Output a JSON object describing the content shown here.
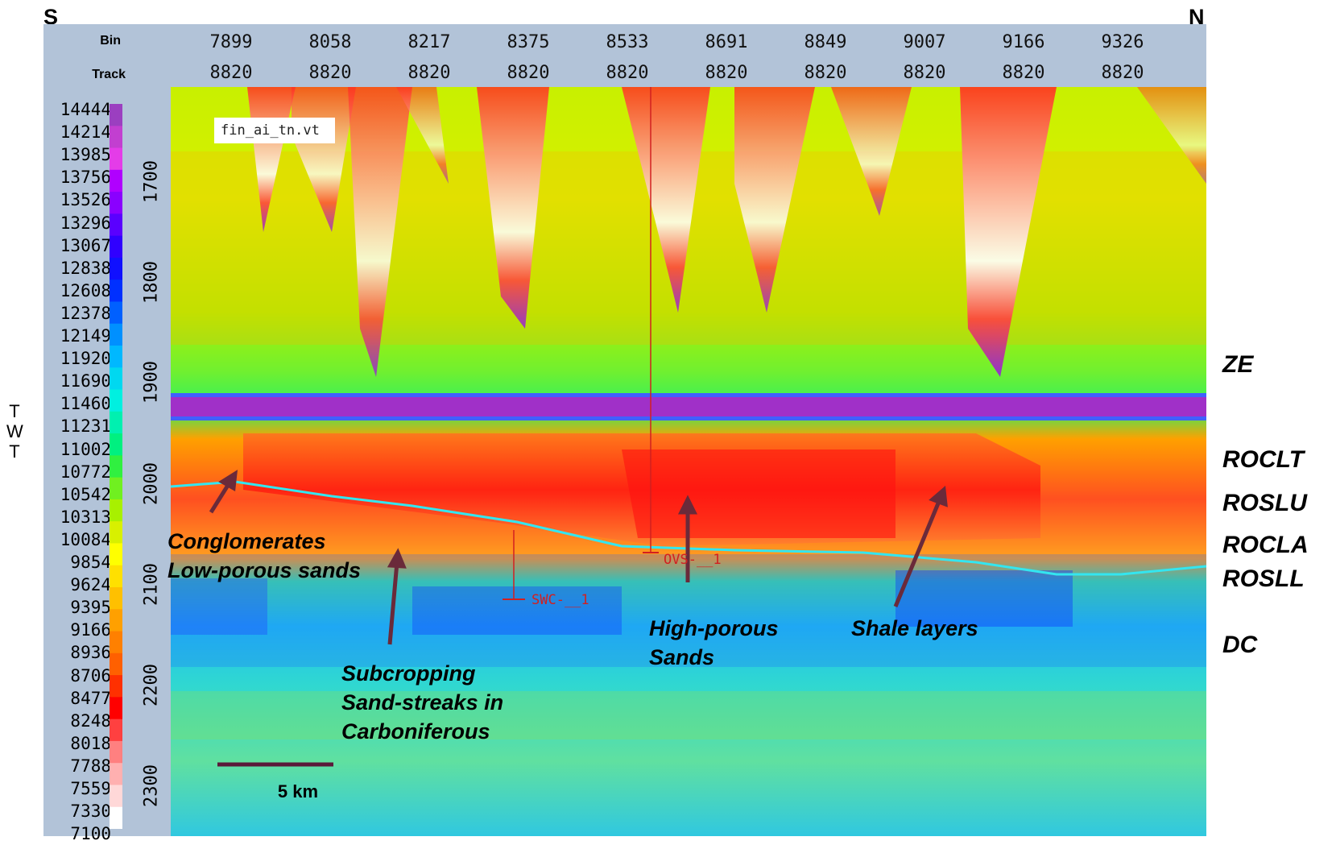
{
  "compass": {
    "left": "S",
    "right": "N"
  },
  "header": {
    "bin_label": "Bin",
    "track_label": "Track",
    "bins": [
      "7899",
      "8058",
      "8217",
      "8375",
      "8533",
      "8691",
      "8849",
      "9007",
      "9166",
      "9326"
    ],
    "tracks": [
      "8820",
      "8820",
      "8820",
      "8820",
      "8820",
      "8820",
      "8820",
      "8820",
      "8820",
      "8820"
    ]
  },
  "color_scale": {
    "values": [
      "14444",
      "14214",
      "13985",
      "13756",
      "13526",
      "13296",
      "13067",
      "12838",
      "12608",
      "12378",
      "12149",
      "11920",
      "11690",
      "11460",
      "11231",
      "11002",
      "10772",
      "10542",
      "10313",
      "10084",
      "9854",
      "9624",
      "9395",
      "9166",
      "8936",
      "8706",
      "8477",
      "8248",
      "8018",
      "7788",
      "7559",
      "7330",
      "7100"
    ],
    "colors": [
      "#9b3fc0",
      "#c23fd0",
      "#e43ce8",
      "#b000ff",
      "#8a00ff",
      "#5a00ff",
      "#3000ff",
      "#1010ff",
      "#0030ff",
      "#0060ff",
      "#0090ff",
      "#00b8ff",
      "#00d8f0",
      "#00f0e0",
      "#00f0b0",
      "#00f080",
      "#30f040",
      "#70f020",
      "#a8f000",
      "#d8f000",
      "#ffff00",
      "#ffe000",
      "#ffc000",
      "#ffa000",
      "#ff8000",
      "#ff6000",
      "#ff3000",
      "#ff0000",
      "#ff4040",
      "#ff8080",
      "#ffb0b0",
      "#ffd8d8",
      "#ffffff"
    ]
  },
  "time_axis": {
    "label": "TWT",
    "letters": [
      "T",
      "W",
      "T"
    ],
    "ticks": [
      "1700",
      "1800",
      "1900",
      "2000",
      "2100",
      "2200",
      "2300"
    ]
  },
  "volume_tag": "fin_ai_tn.vt",
  "horizons": [
    "ZE",
    "ROCLT",
    "ROSLU",
    "ROCLA",
    "ROSLL",
    "DC"
  ],
  "annotations": {
    "conglomerates": [
      "Conglomerates",
      "Low-porous sands"
    ],
    "subcropping": [
      "Subcropping",
      "Sand-streaks in",
      "Carboniferous"
    ],
    "high_porous": [
      "High-porous",
      "Sands"
    ],
    "shale": [
      "Shale layers"
    ]
  },
  "wells": [
    "SWC-__1",
    "OVS-__1"
  ],
  "scalebar": {
    "label": "5 km"
  },
  "colors": {
    "header_bg": "#b2c3d8",
    "horizon_line": "#33e6f0",
    "arrow": "#6a2a3a",
    "well": "#d22020"
  }
}
